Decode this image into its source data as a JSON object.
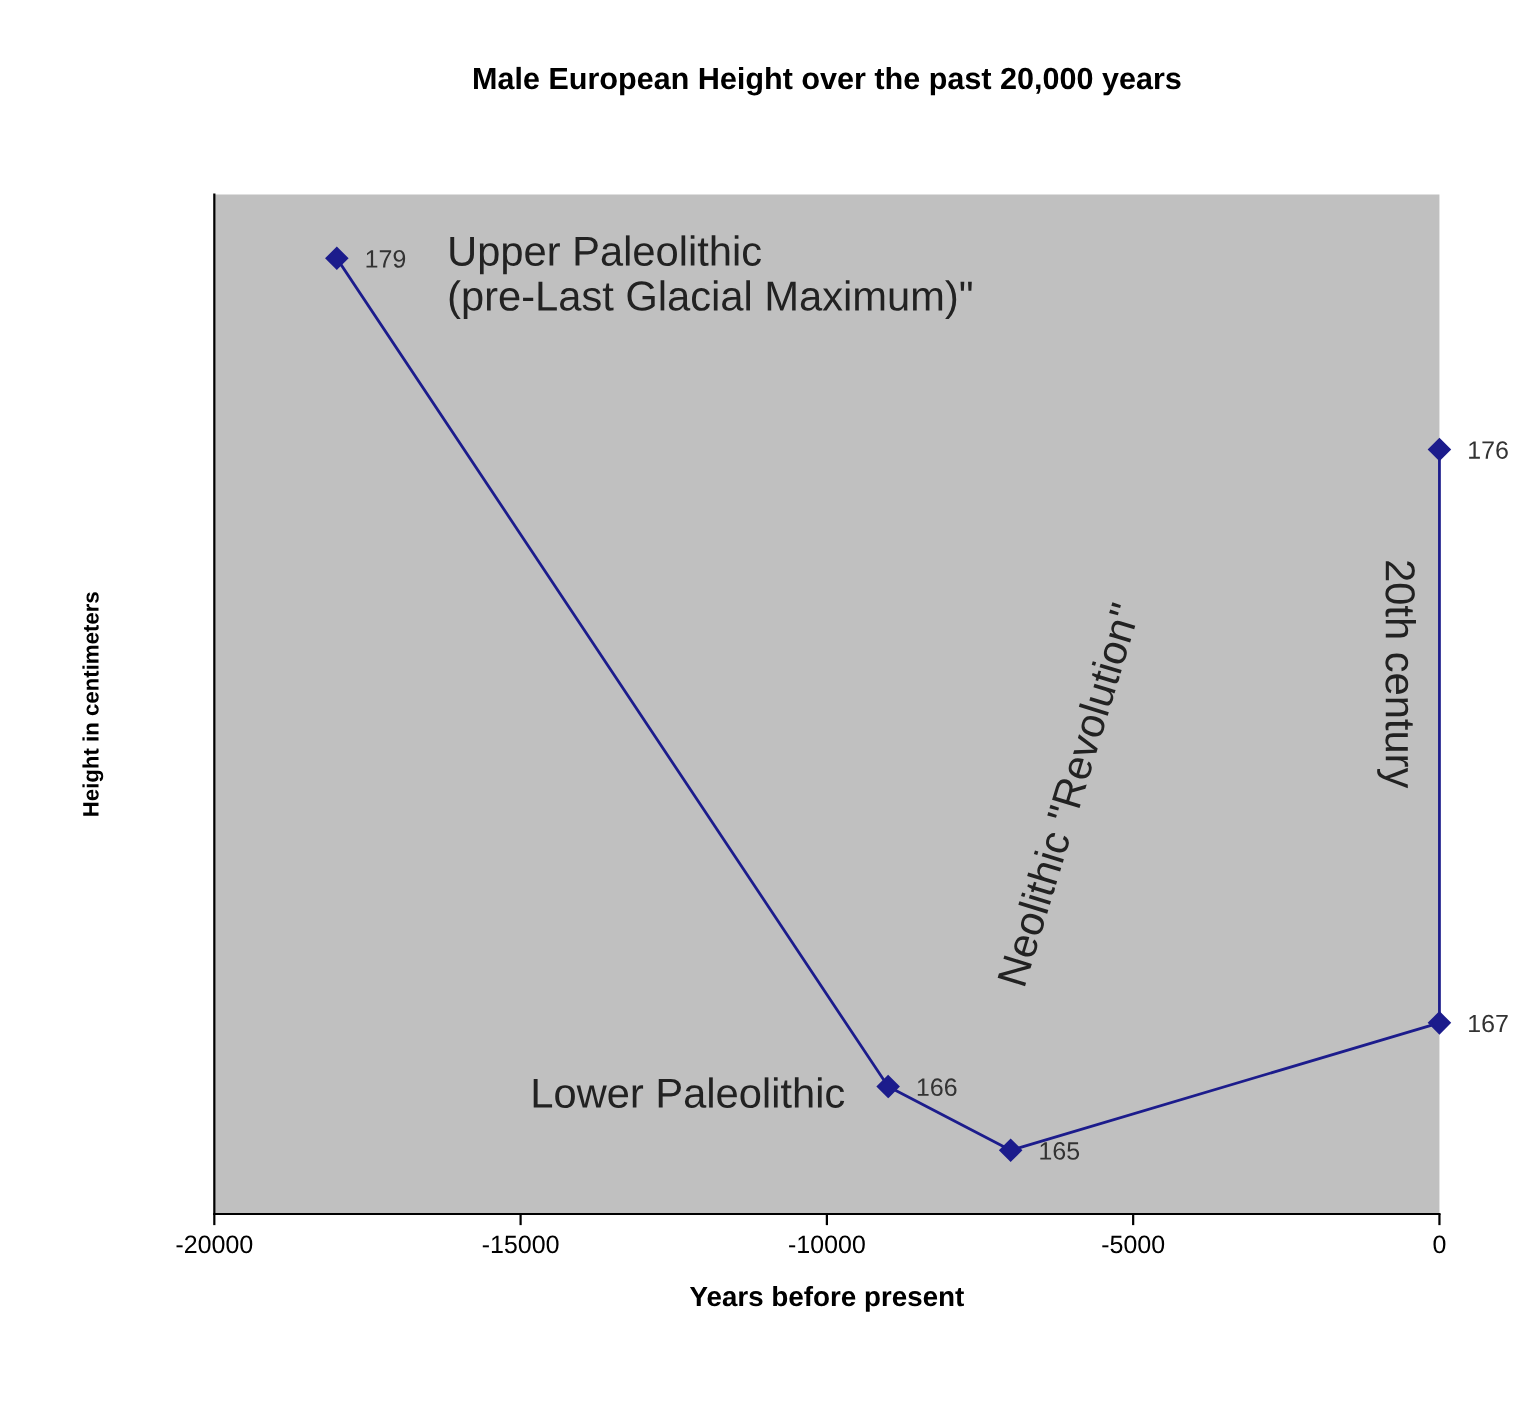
{
  "chart_data": {
    "type": "line",
    "title": "Male European Height over the past 20,000 years",
    "xlabel": "Years before present",
    "ylabel": "Height in centimeters",
    "x": [
      -18000,
      -9000,
      -7000,
      0,
      0
    ],
    "series": [
      {
        "color": "#1c1c8c",
        "values": [
          179,
          166,
          165,
          167,
          176
        ]
      }
    ],
    "xlim": [
      -20000,
      0
    ],
    "xticks": [
      -20000,
      -15000,
      -10000,
      -5000,
      0
    ],
    "ylim": [
      164,
      180
    ],
    "tick_labels": "x",
    "data_labels": true,
    "marker": "diamond",
    "line_style": "solid",
    "grid": false,
    "legend": false,
    "annotations": [
      "Upper Paleolithic\n(pre-Last Glacial Maximum)\"",
      "Lower Paleolithic",
      "Neolithic \"Revolution\"",
      "20th century"
    ]
  }
}
